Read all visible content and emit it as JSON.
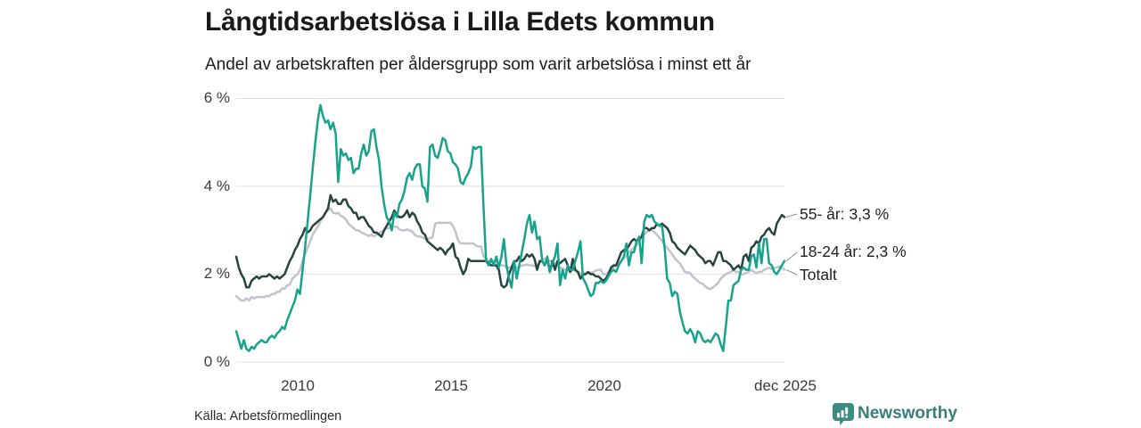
{
  "header": {
    "title": "Långtidsarbetslösa i Lilla Edets kommun",
    "subtitle": "Andel av arbetskraften per åldersgrupp som varit arbetslösa i minst ett år"
  },
  "footer": {
    "source": "Källa: Arbetsförmedlingen",
    "brand": "Newsworthy"
  },
  "colors": {
    "series_55": "#27443f",
    "series_18_24": "#17a28c",
    "series_total": "#c2c3cc",
    "gridline": "#e2e2e2",
    "connector": "#8a8a8a",
    "brand_teal": "#3d8c80"
  },
  "chart_data": {
    "type": "line",
    "title": "Långtidsarbetslösa i Lilla Edets kommun",
    "subtitle": "Andel av arbetskraften per åldersgrupp som varit arbetslösa i minst ett år",
    "x_range_months": [
      "2008-01",
      "2025-12"
    ],
    "ylim": [
      0,
      6
    ],
    "grid": "horizontal",
    "legend_position": "right-end-labels",
    "y_tick_labels": [
      "0 %",
      "2 %",
      "4 %",
      "6 %"
    ],
    "x_tick_labels": [
      "2010",
      "2015",
      "2020",
      "dec 2025"
    ],
    "series": [
      {
        "name": "Totalt",
        "end_label": "Totalt",
        "end_value": 2.1,
        "color": "#c2c3cc",
        "values": [
          1.5,
          1.45,
          1.4,
          1.4,
          1.45,
          1.4,
          1.48,
          1.45,
          1.48,
          1.48,
          1.48,
          1.48,
          1.5,
          1.5,
          1.55,
          1.55,
          1.6,
          1.6,
          1.68,
          1.67,
          1.75,
          1.76,
          1.9,
          1.95,
          2.0,
          2.1,
          2.3,
          2.45,
          2.6,
          2.75,
          2.9,
          3.0,
          3.08,
          3.2,
          3.3,
          3.4,
          3.45,
          3.5,
          3.4,
          3.38,
          3.4,
          3.33,
          3.3,
          3.25,
          3.15,
          3.1,
          3.05,
          3.0,
          3.0,
          2.95,
          2.93,
          2.9,
          2.87,
          2.9,
          2.86,
          2.9,
          2.93,
          2.97,
          3.0,
          3.05,
          3.05,
          3.1,
          3.08,
          3.08,
          3.02,
          3.0,
          3.0,
          3.02,
          3.0,
          2.97,
          2.9,
          2.86,
          2.86,
          2.84,
          2.8,
          2.8,
          2.82,
          2.84,
          3.15,
          3.17,
          3.17,
          3.17,
          3.17,
          3.17,
          3.17,
          3.1,
          2.97,
          2.77,
          2.7,
          2.7,
          2.7,
          2.7,
          2.7,
          2.7,
          2.65,
          2.63,
          2.63,
          2.4,
          2.36,
          2.3,
          2.3,
          2.3,
          2.3,
          2.25,
          2.2,
          2.2,
          2.15,
          2.15,
          2.15,
          2.17,
          2.15,
          2.15,
          2.2,
          2.2,
          2.22,
          2.2,
          2.2,
          2.18,
          2.2,
          2.25,
          2.3,
          2.36,
          2.33,
          2.3,
          2.3,
          2.25,
          2.2,
          2.15,
          2.13,
          2.1,
          2.1,
          2.05,
          2.1,
          2.08,
          2.05,
          2.02,
          2.0,
          2.0,
          2.05,
          2.03,
          2.05,
          2.08,
          2.1,
          2.1,
          2.0,
          2.0,
          2.05,
          2.1,
          2.15,
          2.2,
          2.25,
          2.3,
          2.36,
          2.42,
          2.5,
          2.56,
          2.6,
          2.66,
          2.75,
          2.83,
          2.9,
          2.96,
          3.0,
          3.0,
          2.96,
          2.9,
          2.83,
          2.76,
          2.66,
          2.6,
          2.53,
          2.45,
          2.36,
          2.3,
          2.25,
          2.15,
          2.05,
          2.04,
          2.03,
          1.95,
          1.9,
          1.85,
          1.8,
          1.78,
          1.72,
          1.68,
          1.66,
          1.7,
          1.75,
          1.8,
          1.9,
          1.95,
          2.0,
          2.03,
          2.05,
          2.1,
          2.05,
          2.05,
          2.0,
          2.0,
          2.03,
          2.05,
          2.1,
          2.05,
          2.03,
          2.05,
          2.05,
          2.1,
          2.12,
          2.15,
          2.12,
          2.15,
          2.15,
          2.18,
          2.15,
          2.1
        ]
      },
      {
        "name": "55- år",
        "end_label": "55- år: 3,3 %",
        "end_value": 3.3,
        "color": "#27443f",
        "values": [
          2.4,
          2.15,
          2.0,
          1.9,
          1.7,
          1.7,
          1.85,
          1.9,
          1.95,
          1.9,
          1.95,
          1.95,
          1.95,
          2.0,
          1.95,
          1.9,
          1.95,
          1.9,
          1.95,
          2.0,
          2.15,
          2.3,
          2.4,
          2.55,
          2.65,
          2.8,
          2.9,
          3.05,
          2.95,
          3.0,
          3.1,
          3.15,
          3.2,
          3.25,
          3.3,
          3.4,
          3.5,
          3.8,
          3.65,
          3.7,
          3.6,
          3.6,
          3.7,
          3.7,
          3.55,
          3.5,
          3.4,
          3.4,
          3.25,
          3.3,
          3.3,
          3.2,
          3.1,
          3.05,
          2.95,
          2.95,
          2.9,
          2.85,
          3.0,
          3.1,
          3.2,
          3.3,
          3.45,
          3.35,
          3.3,
          3.3,
          3.35,
          3.45,
          3.3,
          3.4,
          3.35,
          3.2,
          3.1,
          2.95,
          2.9,
          2.75,
          2.7,
          2.65,
          2.6,
          2.55,
          2.6,
          2.55,
          2.45,
          2.55,
          2.6,
          2.7,
          2.4,
          2.35,
          2.15,
          2.0,
          2.1,
          2.35,
          2.3,
          2.3,
          2.3,
          2.3,
          2.3,
          2.3,
          2.3,
          2.25,
          2.2,
          2.2,
          2.2,
          2.1,
          1.75,
          1.7,
          1.75,
          2.0,
          2.15,
          2.3,
          2.3,
          2.4,
          2.3,
          2.35,
          2.45,
          2.4,
          2.45,
          2.35,
          2.1,
          2.3,
          2.3,
          2.2,
          2.35,
          2.05,
          2.3,
          2.1,
          2.3,
          2.25,
          2.3,
          2.35,
          2.2,
          2.05,
          2.35,
          2.1,
          2.05,
          1.9,
          2.0,
          2.0,
          2.05,
          2.0,
          2.0,
          1.95,
          1.95,
          1.9,
          1.85,
          1.9,
          2.0,
          2.15,
          2.2,
          2.2,
          2.35,
          2.5,
          2.55,
          2.55,
          2.65,
          2.75,
          2.8,
          2.75,
          2.8,
          2.85,
          3.05,
          3.05,
          3.0,
          3.05,
          3.05,
          3.15,
          3.1,
          3.15,
          3.1,
          3.05,
          2.95,
          2.75,
          2.7,
          2.6,
          2.55,
          2.5,
          2.45,
          2.55,
          2.65,
          2.6,
          2.55,
          2.45,
          2.4,
          2.35,
          2.25,
          2.3,
          2.3,
          2.2,
          2.35,
          2.5,
          2.5,
          2.3,
          2.3,
          2.25,
          2.2,
          2.1,
          2.15,
          2.2,
          2.1,
          2.4,
          2.45,
          2.3,
          2.6,
          2.65,
          2.75,
          2.7,
          2.85,
          2.9,
          3.0,
          3.05,
          2.95,
          2.9,
          3.15,
          3.25,
          3.35,
          3.3
        ]
      },
      {
        "name": "18-24 år",
        "end_label": "18-24 år: 2,3 %",
        "end_value": 2.3,
        "color": "#17a28c",
        "values": [
          0.7,
          0.5,
          0.3,
          0.5,
          0.3,
          0.25,
          0.35,
          0.3,
          0.4,
          0.45,
          0.5,
          0.45,
          0.45,
          0.55,
          0.6,
          0.55,
          0.65,
          0.7,
          0.8,
          0.75,
          0.95,
          1.1,
          1.25,
          1.4,
          1.65,
          1.55,
          2.1,
          2.6,
          3.2,
          3.8,
          4.4,
          5.0,
          5.5,
          5.85,
          5.6,
          5.45,
          5.5,
          5.3,
          5.45,
          5.2,
          4.1,
          4.85,
          4.7,
          4.75,
          4.6,
          4.65,
          4.3,
          4.4,
          4.4,
          4.75,
          4.95,
          4.7,
          4.8,
          5.25,
          5.3,
          4.9,
          4.6,
          4.0,
          3.6,
          3.3,
          3.2,
          3.0,
          3.4,
          3.3,
          3.6,
          3.7,
          3.9,
          4.2,
          4.3,
          4.15,
          4.4,
          4.5,
          4.5,
          4.0,
          3.95,
          3.65,
          4.9,
          4.95,
          4.7,
          4.65,
          4.85,
          5.1,
          5.05,
          4.8,
          4.75,
          4.55,
          4.5,
          4.4,
          4.1,
          4.05,
          4.2,
          4.3,
          4.45,
          4.9,
          4.85,
          4.9,
          4.9,
          3.5,
          2.3,
          2.2,
          2.35,
          2.2,
          2.4,
          2.15,
          2.4,
          2.8,
          2.2,
          1.9,
          1.7,
          2.3,
          1.9,
          2.2,
          2.5,
          2.8,
          3.15,
          3.35,
          2.95,
          3.2,
          2.8,
          2.85,
          2.3,
          2.2,
          2.4,
          2.05,
          2.25,
          2.4,
          2.7,
          1.75,
          2.1,
          1.9,
          2.2,
          2.1,
          2.1,
          2.3,
          2.5,
          2.75,
          1.9,
          1.8,
          1.65,
          1.5,
          1.55,
          1.8,
          1.8,
          1.85,
          1.8,
          1.85,
          1.95,
          2.05,
          2.1,
          2.05,
          2.2,
          2.3,
          2.4,
          2.7,
          2.2,
          2.5,
          2.5,
          2.75,
          2.85,
          2.25,
          3.2,
          3.35,
          3.3,
          3.35,
          3.2,
          3.15,
          3.1,
          3.1,
          2.6,
          1.9,
          1.8,
          1.5,
          1.6,
          1.55,
          1.15,
          0.9,
          0.7,
          0.65,
          0.75,
          0.65,
          0.45,
          0.7,
          0.65,
          0.5,
          0.45,
          0.5,
          0.45,
          0.55,
          0.65,
          0.6,
          0.4,
          0.25,
          0.8,
          1.4,
          1.4,
          1.75,
          1.8,
          1.85,
          2.1,
          2.15,
          2.1,
          2.1,
          2.4,
          2.45,
          2.15,
          2.7,
          2.25,
          2.8,
          2.8,
          2.25,
          2.2,
          2.05,
          2.0,
          2.1,
          2.2,
          2.3
        ]
      }
    ]
  }
}
